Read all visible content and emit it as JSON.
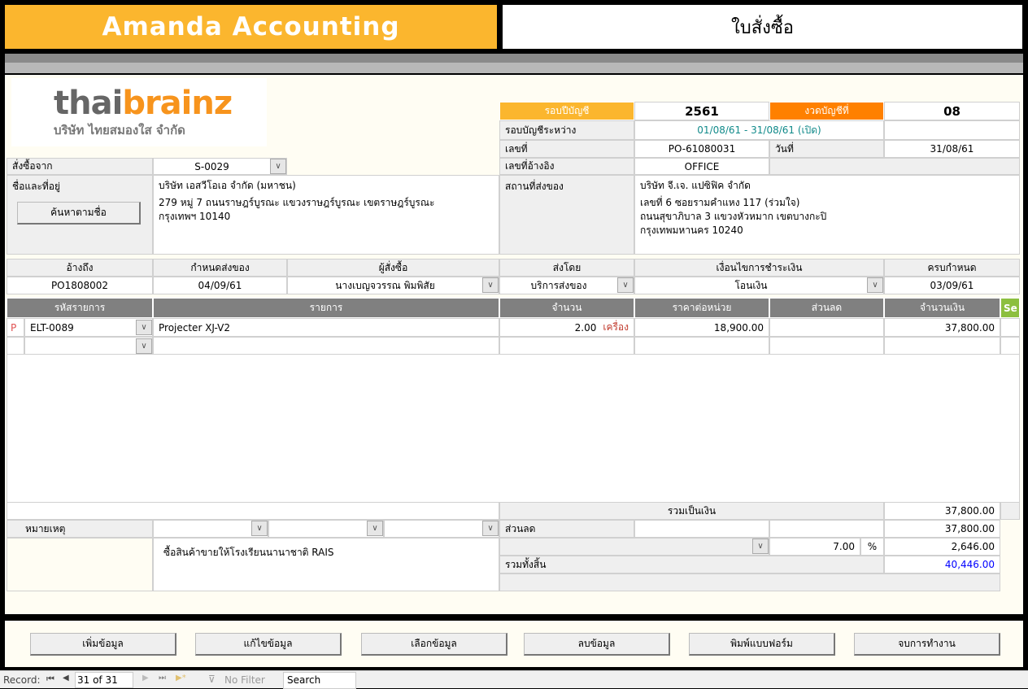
{
  "app_title": "Amanda Accounting",
  "form_title": "ใบสั่งซื้อ",
  "logo": {
    "brand_a": "thai",
    "brand_b": "brainz",
    "company": "บริษัท ไทยสมองใส จำกัด"
  },
  "period": {
    "fiscal_year_label": "รอบปีบัญชี",
    "fiscal_year": "2561",
    "period_label": "งวดบัญชีที่",
    "period": "08",
    "range_label": "รอบบัญชีระหว่าง",
    "range": "01/08/61 - 31/08/61  (เปิด)",
    "doc_no_label": "เลขที่",
    "doc_no": "PO-61080031",
    "date_label": "วันที่",
    "date": "31/08/61",
    "ref_label": "เลขที่อ้างอิง",
    "ref": "OFFICE"
  },
  "supplier": {
    "label": "สั่งซื้อจาก",
    "code": "S-0029",
    "name_label": "ชื่อและที่อยู่",
    "search_button": "ค้นหาตามชื่อ",
    "name": "บริษัท เอสวีโอเอ จำกัด (มหาชน)",
    "address1": "279 หมู่ 7 ถนนราษฎร์บูรณะ แขวงราษฎร์บูรณะ เขตราษฎร์บูรณะ",
    "address2": "กรุงเทพฯ  10140"
  },
  "ship_to": {
    "label": "สถานที่ส่งของ",
    "name": "บริษัท จี.เจ. แปซิฟิค จำกัด",
    "address1": "เลขที่ 6 ซอยรามคำแหง 117 (ร่วมใจ)",
    "address2": "ถนนสุขาภิบาล 3 แขวงหัวหมาก  เขตบางกะปิ",
    "address3": "กรุงเทพมหานคร 10240"
  },
  "terms": {
    "headers": [
      "อ้างถึง",
      "กำหนดส่งของ",
      "ผู้สั่งซื้อ",
      "ส่งโดย",
      "เงื่อนไขการชำระเงิน",
      "ครบกำหนด"
    ],
    "values": [
      "PO1808002",
      "04/09/61",
      "นางเบญจวรรณ  พิมพิสัย",
      "บริการส่งของ",
      "โอนเงิน",
      "03/09/61"
    ]
  },
  "grid": {
    "headers": [
      "รหัสรายการ",
      "รายการ",
      "จำนวน",
      "ราคาต่อหน่วย",
      "ส่วนลด",
      "จำนวนเงิน",
      "Se"
    ],
    "rows": [
      {
        "flag": "P",
        "code": "ELT-0089",
        "desc": "Projecter XJ-V2",
        "qty": "2.00",
        "unit": "เครื่อง",
        "price": "18,900.00",
        "discount": "",
        "amount": "37,800.00"
      }
    ]
  },
  "totals": {
    "subtotal_label": "รวมเป็นเงิน",
    "subtotal": "37,800.00",
    "discount_label": "ส่วนลด",
    "after_discount": "37,800.00",
    "vat_rate": "7.00",
    "percent": "%",
    "vat": "2,646.00",
    "grand_label": "รวมทั้งสิ้น",
    "grand": "40,446.00"
  },
  "remarks": {
    "label": "หมายเหตุ",
    "text": "ซื้อสินค้าขายให้โรงเรียนนานาชาติ RAIS"
  },
  "buttons": [
    "เพิ่มข้อมูล",
    "แก้ไขข้อมูล",
    "เลือกข้อมูล",
    "ลบข้อมูล",
    "พิมพ์แบบฟอร์ม",
    "จบการทำงาน"
  ],
  "status": {
    "record_label": "Record:",
    "record": "31 of 31",
    "filter": "No Filter",
    "search": "Search"
  },
  "colors": {
    "brand_orange": "#fbb62e",
    "period_orange": "#ff8000",
    "grid_header": "#808080",
    "grand_total": "#0000ff"
  }
}
